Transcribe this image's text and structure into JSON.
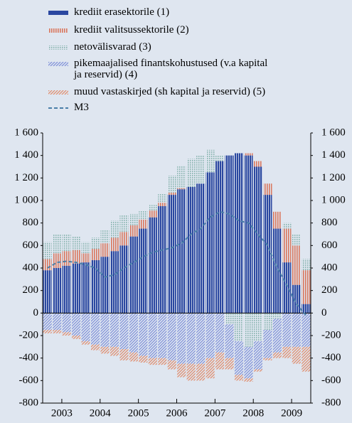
{
  "chart_data": {
    "type": "bar",
    "x": [
      2003.125,
      2003.375,
      2003.625,
      2003.875,
      2004.125,
      2004.375,
      2004.625,
      2004.875,
      2005.125,
      2005.375,
      2005.625,
      2005.875,
      2006.125,
      2006.375,
      2006.625,
      2006.875,
      2007.125,
      2007.375,
      2007.625,
      2007.875,
      2008.125,
      2008.375,
      2008.625,
      2008.875,
      2009.125,
      2009.375,
      2009.625,
      2009.875
    ],
    "xlim": [
      2003,
      2010
    ],
    "xticks": [
      {
        "value": 2003.5,
        "label": "2003"
      },
      {
        "value": 2004.5,
        "label": "2004"
      },
      {
        "value": 2005.5,
        "label": "2005"
      },
      {
        "value": 2006.5,
        "label": "2006"
      },
      {
        "value": 2007.5,
        "label": "2007"
      },
      {
        "value": 2008.5,
        "label": "2008"
      },
      {
        "value": 2009.5,
        "label": "2009"
      }
    ],
    "ylim": [
      -800,
      1600
    ],
    "yticks": [
      -800,
      -600,
      -400,
      -200,
      0,
      200,
      400,
      600,
      800,
      {
        "value": 1000,
        "label": "1 000"
      },
      {
        "value": 1200,
        "label": "1 200"
      },
      {
        "value": 1400,
        "label": "1 400"
      },
      {
        "value": 1600,
        "label": "1 600"
      }
    ],
    "series": [
      {
        "name": "krediit erasektorile (1)",
        "color": "#2a47a0",
        "values": [
          380,
          400,
          420,
          440,
          450,
          470,
          500,
          550,
          600,
          680,
          750,
          850,
          950,
          1050,
          1100,
          1120,
          1150,
          1250,
          1350,
          1400,
          1420,
          1400,
          1300,
          1050,
          750,
          450,
          250,
          80
        ]
      },
      {
        "name": "krediit valitsussektorile (2)",
        "color": "#d9765c",
        "values": [
          100,
          130,
          130,
          120,
          80,
          100,
          120,
          120,
          120,
          100,
          80,
          60,
          30,
          20,
          10,
          0,
          0,
          0,
          0,
          0,
          0,
          20,
          50,
          100,
          150,
          300,
          350,
          300
        ]
      },
      {
        "name": "netovälisvarad (3)",
        "color": "#8fb8b4",
        "values": [
          150,
          170,
          150,
          120,
          100,
          100,
          120,
          150,
          150,
          100,
          80,
          50,
          80,
          150,
          200,
          250,
          250,
          200,
          50,
          -100,
          -250,
          -300,
          -250,
          -150,
          -50,
          50,
          100,
          100
        ]
      },
      {
        "name": "pikemaajalised finantskohustused (v.a kapital\nja reservid) (4)",
        "color": "#7d8fd8",
        "values": [
          -150,
          -150,
          -170,
          -200,
          -250,
          -280,
          -300,
          -300,
          -320,
          -350,
          -380,
          -400,
          -400,
          -420,
          -450,
          -450,
          -450,
          -400,
          -350,
          -300,
          -300,
          -280,
          -250,
          -250,
          -300,
          -300,
          -300,
          -300
        ]
      },
      {
        "name": "muud vastaskirjed (sh kapital ja reservid) (5)",
        "color": "#e08a68",
        "values": [
          -30,
          -30,
          -30,
          -30,
          -30,
          -50,
          -60,
          -80,
          -100,
          -80,
          -60,
          -60,
          -60,
          -80,
          -120,
          -150,
          -150,
          -180,
          -150,
          -100,
          -50,
          -30,
          -20,
          -20,
          -50,
          -100,
          -150,
          -220
        ]
      },
      {
        "name": "M3",
        "type": "line",
        "color": "#4a7fa8",
        "values": [
          400,
          450,
          460,
          450,
          430,
          400,
          320,
          340,
          400,
          450,
          500,
          540,
          560,
          580,
          620,
          700,
          750,
          850,
          900,
          880,
          820,
          800,
          700,
          600,
          400,
          250,
          80,
          -20
        ]
      }
    ]
  }
}
